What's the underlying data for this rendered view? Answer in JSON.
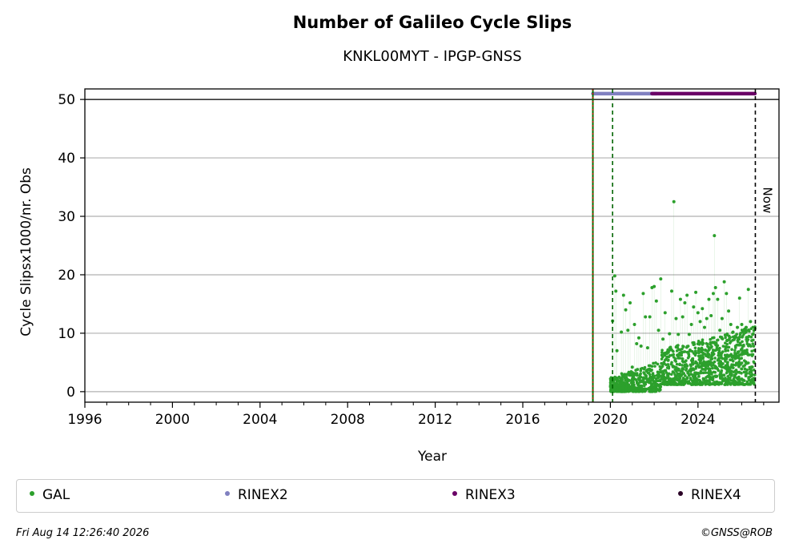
{
  "chart_data": {
    "type": "scatter",
    "title": "Number of Galileo Cycle Slips",
    "subtitle": "KNKL00MYT - IPGP-GNSS",
    "xlabel": "Year",
    "ylabel": "Cycle Slipsx1000/nr. Obs",
    "xlim": [
      1996,
      2027.7
    ],
    "ylim": [
      -1.8,
      51.8
    ],
    "xticks": [
      1996,
      2000,
      2004,
      2008,
      2012,
      2016,
      2020,
      2024
    ],
    "yticks": [
      0,
      10,
      20,
      30,
      40,
      50
    ],
    "grid": "horizontal",
    "legend_position": "bottom",
    "series": [
      {
        "name": "GAL",
        "color": "#2ca02c",
        "points": [
          [
            2020.1,
            12.1
          ],
          [
            2020.2,
            19.8
          ],
          [
            2020.25,
            17.2
          ],
          [
            2020.3,
            7.0
          ],
          [
            2020.5,
            10.2
          ],
          [
            2020.6,
            16.5
          ],
          [
            2020.7,
            14.0
          ],
          [
            2020.8,
            10.5
          ],
          [
            2020.9,
            15.2
          ],
          [
            2021.0,
            4.2
          ],
          [
            2021.1,
            11.5
          ],
          [
            2021.2,
            8.2
          ],
          [
            2021.3,
            9.2
          ],
          [
            2021.4,
            7.8
          ],
          [
            2021.5,
            16.8
          ],
          [
            2021.6,
            12.8
          ],
          [
            2021.7,
            7.5
          ],
          [
            2021.8,
            12.8
          ],
          [
            2021.9,
            17.8
          ],
          [
            2022.0,
            18.0
          ],
          [
            2022.1,
            15.5
          ],
          [
            2022.2,
            10.5
          ],
          [
            2022.3,
            19.3
          ],
          [
            2022.4,
            9.0
          ],
          [
            2022.5,
            13.5
          ],
          [
            2022.6,
            6.8
          ],
          [
            2022.7,
            9.9
          ],
          [
            2022.8,
            17.2
          ],
          [
            2022.9,
            32.5
          ],
          [
            2023.0,
            12.5
          ],
          [
            2023.1,
            9.8
          ],
          [
            2023.2,
            15.8
          ],
          [
            2023.3,
            12.8
          ],
          [
            2023.4,
            15.2
          ],
          [
            2023.5,
            16.5
          ],
          [
            2023.6,
            9.8
          ],
          [
            2023.7,
            11.5
          ],
          [
            2023.8,
            14.5
          ],
          [
            2023.9,
            17.0
          ],
          [
            2024.0,
            13.5
          ],
          [
            2024.1,
            12.0
          ],
          [
            2024.2,
            14.2
          ],
          [
            2024.3,
            11.0
          ],
          [
            2024.4,
            12.5
          ],
          [
            2024.5,
            15.8
          ],
          [
            2024.6,
            13.0
          ],
          [
            2024.7,
            16.8
          ],
          [
            2024.75,
            26.7
          ],
          [
            2024.8,
            17.8
          ],
          [
            2024.9,
            15.8
          ],
          [
            2025.0,
            10.5
          ],
          [
            2025.1,
            12.5
          ],
          [
            2025.2,
            18.8
          ],
          [
            2025.3,
            16.8
          ],
          [
            2025.4,
            13.8
          ],
          [
            2025.5,
            11.5
          ],
          [
            2025.6,
            10.2
          ],
          [
            2025.7,
            9.5
          ],
          [
            2025.8,
            11.0
          ],
          [
            2025.9,
            16.0
          ],
          [
            2026.0,
            11.5
          ],
          [
            2026.1,
            10.5
          ],
          [
            2026.2,
            11.0
          ],
          [
            2026.3,
            17.5
          ],
          [
            2026.4,
            12.0
          ],
          [
            2026.5,
            9.8
          ],
          [
            2026.6,
            10.8
          ]
        ],
        "dense_band": {
          "x": [
            2020.0,
            2026.6
          ],
          "y_low": 0,
          "y_high": 10
        }
      },
      {
        "name": "RINEX2",
        "color": "#8080c0",
        "x_range": [
          2019.2,
          2022.1
        ],
        "y": 51
      },
      {
        "name": "RINEX3",
        "color": "#6a0066",
        "x_range": [
          2021.9,
          2026.6
        ],
        "y": 51
      },
      {
        "name": "RINEX4",
        "color": "#2a0026",
        "x_range": [],
        "y": 51
      }
    ],
    "vlines": [
      {
        "x": 2019.2,
        "style": "solid-red-green"
      },
      {
        "x": 2020.1,
        "style": "dashed-green"
      },
      {
        "x": 2026.62,
        "style": "dashed-black",
        "label": "Now"
      }
    ]
  },
  "footer": {
    "timestamp": "Fri Aug 14 12:26:40 2026",
    "copyright": "©GNSS@ROB"
  }
}
